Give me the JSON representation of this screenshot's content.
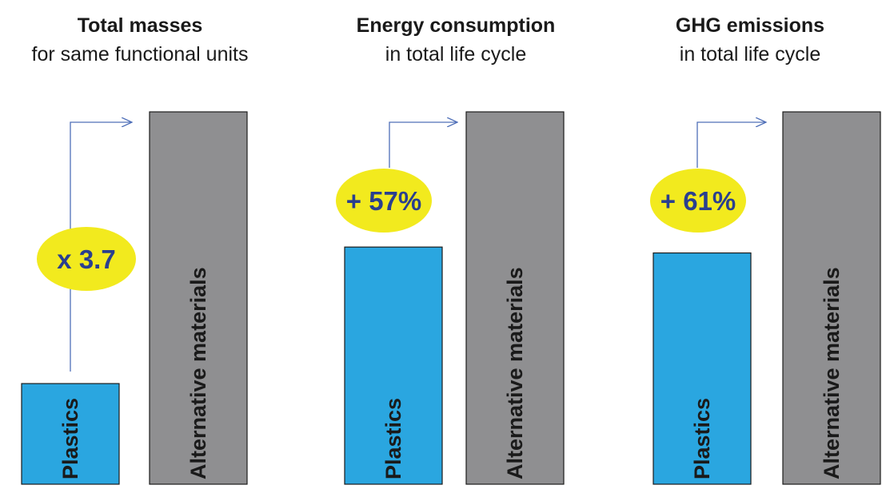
{
  "chart_data": [
    {
      "type": "bar",
      "title": "Total masses",
      "subtitle": "for same functional units",
      "categories": [
        "Plastics",
        "Alternative materials"
      ],
      "values": [
        1,
        3.7
      ],
      "annotation": "x 3.7"
    },
    {
      "type": "bar",
      "title": "Energy consumption",
      "subtitle": "in total life cycle",
      "categories": [
        "Plastics",
        "Alternative materials"
      ],
      "values": [
        1,
        1.57
      ],
      "annotation": "+ 57%"
    },
    {
      "type": "bar",
      "title": "GHG emissions",
      "subtitle": "in total life cycle",
      "categories": [
        "Plastics",
        "Alternative materials"
      ],
      "values": [
        1,
        1.61
      ],
      "annotation": "+ 61%"
    }
  ],
  "colors": {
    "plastics": "#2aa6e0",
    "alternative": "#8f8f91",
    "annotation_fill": "#f2ea1e",
    "annotation_text": "#2a3f8f",
    "arrow": "#4f6fb8",
    "text": "#1a1a1a"
  }
}
